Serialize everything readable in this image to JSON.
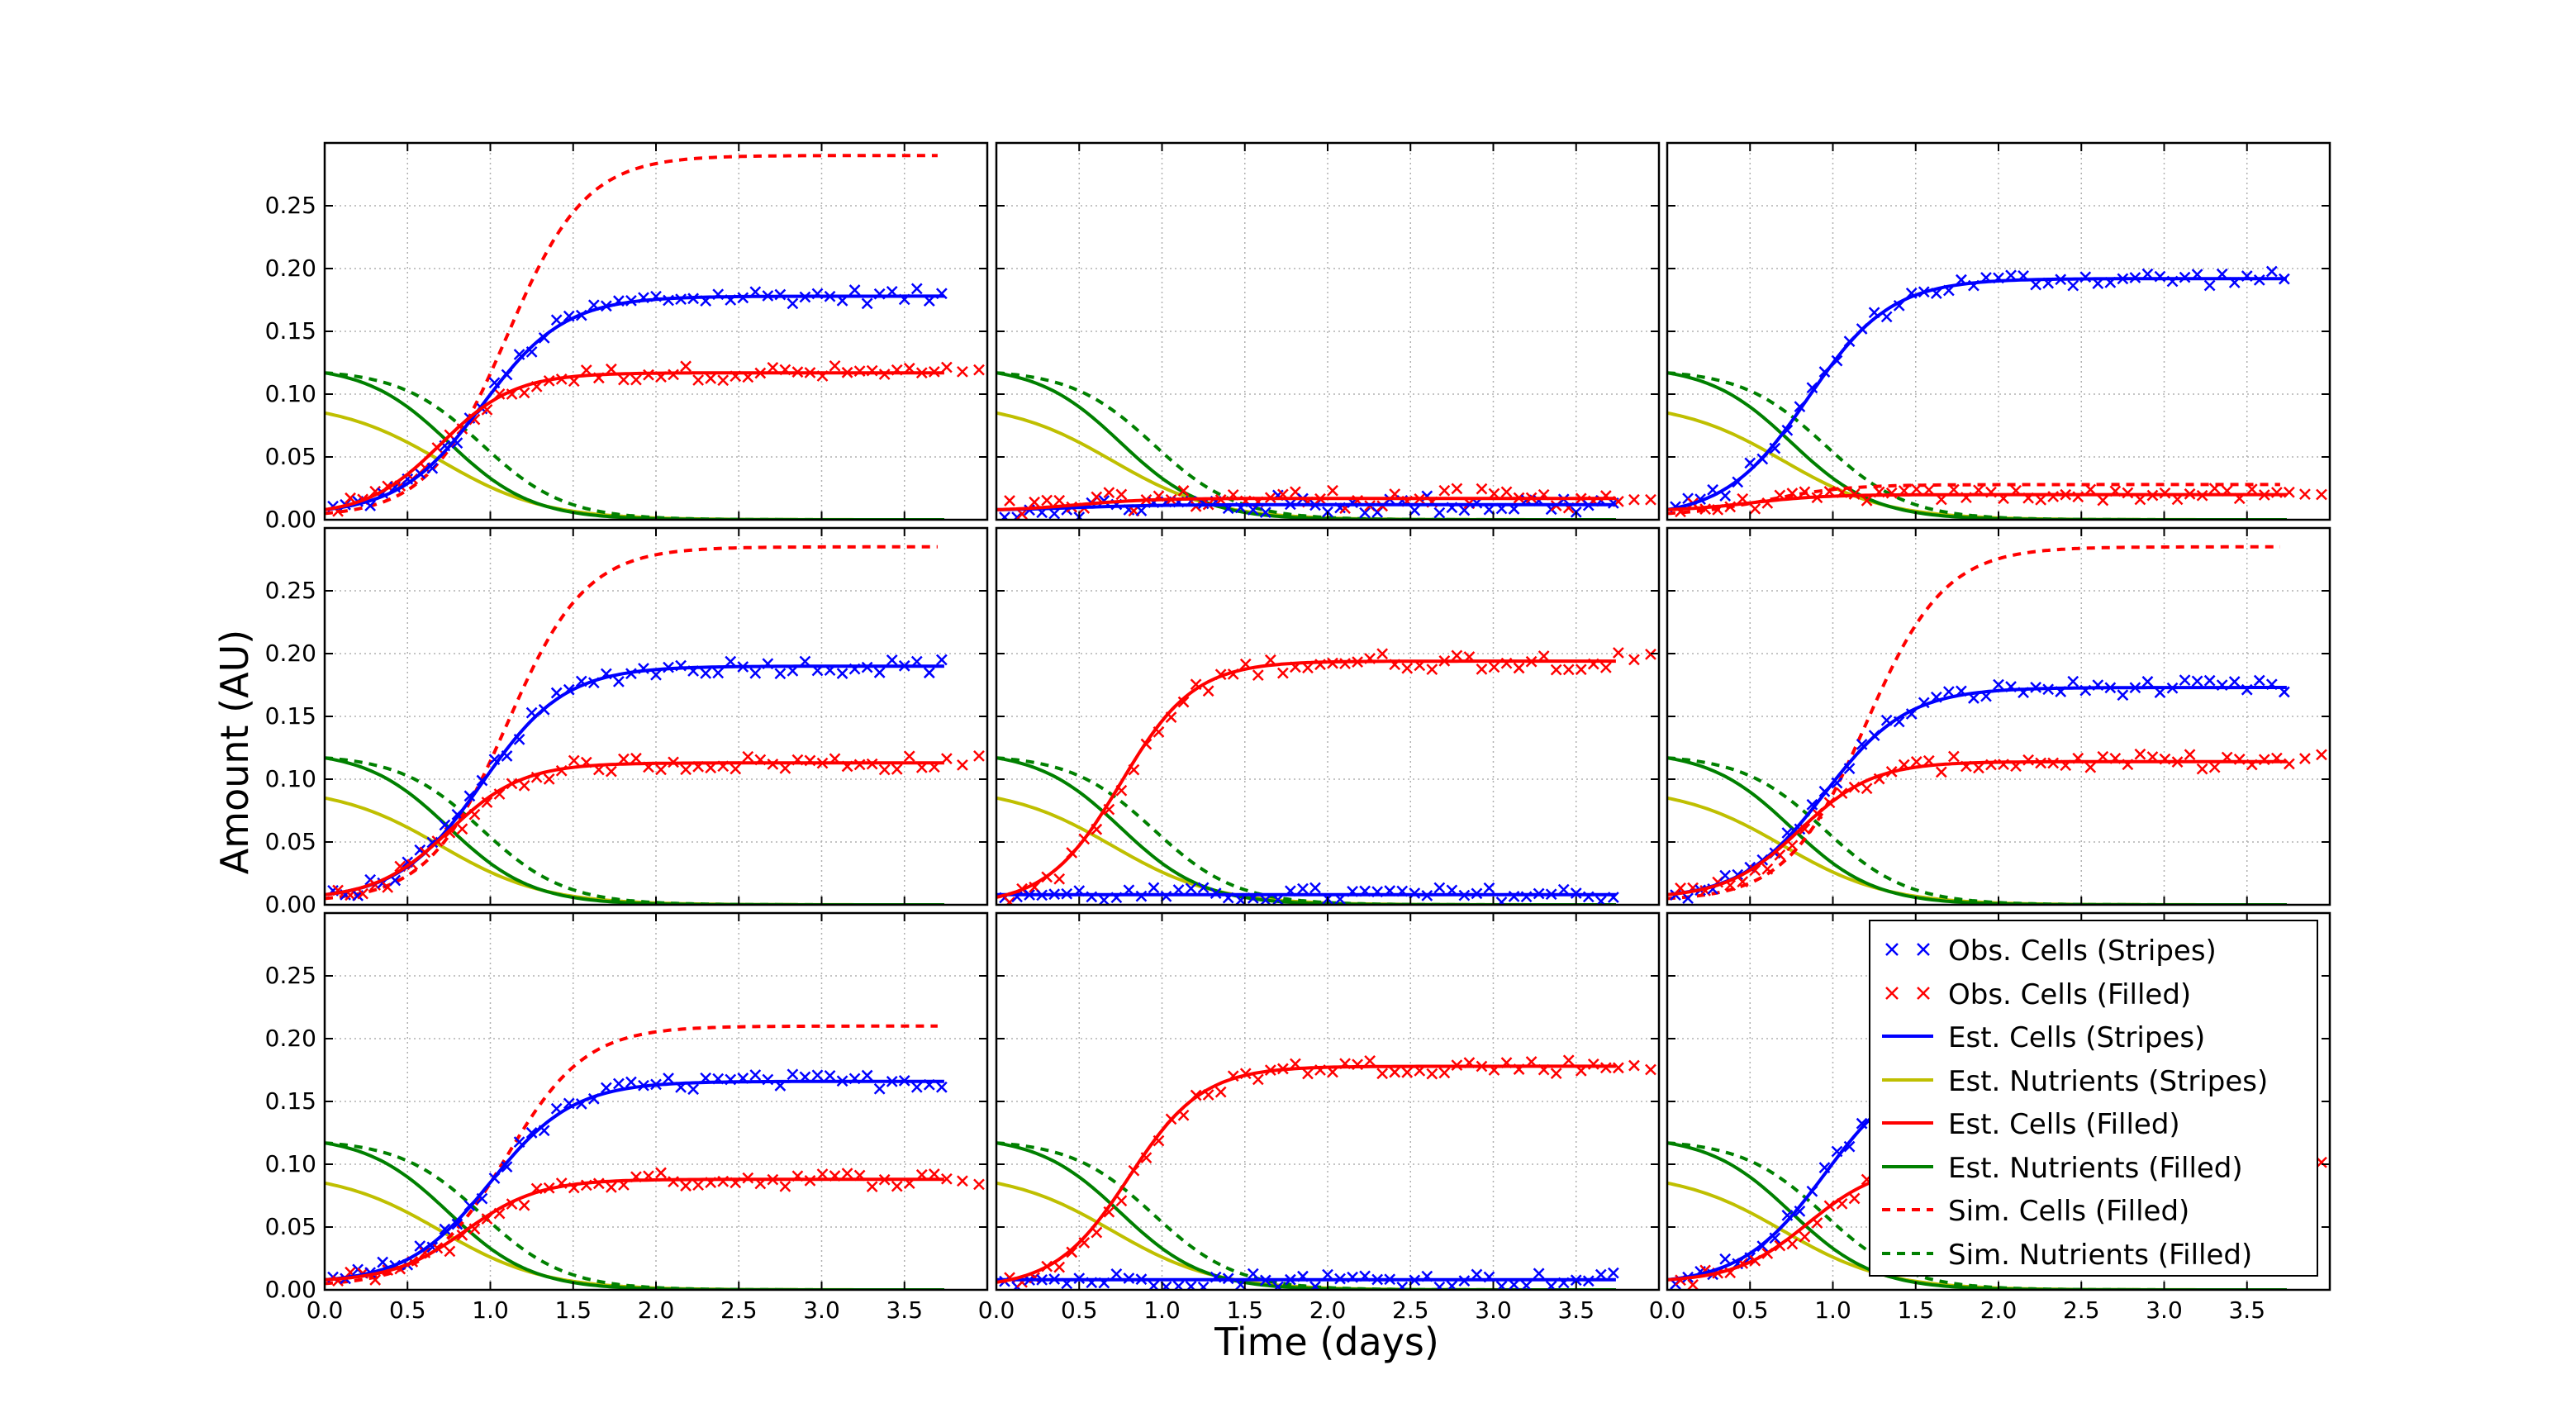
{
  "figure": {
    "ylabel": "Amount (AU)",
    "xlabel": "Time (days)"
  },
  "colors": {
    "stripes_cells": "#0000ff",
    "stripes_nutrients": "#bfbf00",
    "filled_cells": "#ff0000",
    "filled_nutrients": "#008000",
    "grid": "#b0b0b0"
  },
  "legend": {
    "position": "lower-right panel, top-right",
    "items": [
      {
        "label": "Obs. Cells (Stripes)",
        "color": "#0000ff",
        "style": "marker-x"
      },
      {
        "label": "Obs. Cells (Filled)",
        "color": "#ff0000",
        "style": "marker-x"
      },
      {
        "label": "Est. Cells (Stripes)",
        "color": "#0000ff",
        "style": "solid"
      },
      {
        "label": "Est. Nutrients (Stripes)",
        "color": "#bfbf00",
        "style": "solid"
      },
      {
        "label": "Est. Cells (Filled)",
        "color": "#ff0000",
        "style": "solid"
      },
      {
        "label": "Est. Nutrients (Filled)",
        "color": "#008000",
        "style": "solid"
      },
      {
        "label": "Sim. Cells (Filled)",
        "color": "#ff0000",
        "style": "dashed"
      },
      {
        "label": "Sim. Nutrients (Filled)",
        "color": "#008000",
        "style": "dashed"
      }
    ]
  },
  "chart_data": {
    "type": "line",
    "layout": "3x3 grid of panels, shared axes",
    "xlabel": "Time (days)",
    "ylabel": "Amount (AU)",
    "xlim": [
      0,
      4.0
    ],
    "ylim": [
      0,
      0.3
    ],
    "xticks": [
      "0.0",
      "0.5",
      "1.0",
      "1.5",
      "2.0",
      "2.5",
      "3.0",
      "3.5"
    ],
    "yticks": [
      "0.00",
      "0.05",
      "0.10",
      "0.15",
      "0.20",
      "0.25"
    ],
    "grid": true,
    "model_curves": {
      "est_nutrients_stripes": {
        "start": 0.085,
        "midpoint_days": 0.7
      },
      "est_nutrients_filled": {
        "start": 0.117,
        "midpoint_days": 0.75
      },
      "sim_nutrients_filled": {
        "start": 0.117,
        "midpoint_days": 0.95
      }
    },
    "panels": [
      {
        "id": "r1c1",
        "stripes_cells_plateau": 0.178,
        "stripes_cells_mid_days": 0.95,
        "stripes_cells_start": 0.008,
        "filled_cells_plateau": 0.117,
        "filled_cells_mid_days": 0.7,
        "filled_cells_start": 0.008,
        "sim_cells_plateau": 0.29,
        "sim_cells_mid_days": 1.1,
        "sim_cells_start": 0.005,
        "obs_stripes_visible": true,
        "obs_stripes_noise": 0.006,
        "obs_filled_noise": 0.006
      },
      {
        "id": "r1c2",
        "stripes_cells_plateau": 0.012,
        "stripes_cells_mid_days": 0.5,
        "stripes_cells_start": 0.008,
        "filled_cells_plateau": 0.017,
        "filled_cells_mid_days": 0.5,
        "filled_cells_start": 0.008,
        "sim_cells_plateau": null,
        "sim_cells_mid_days": null,
        "sim_cells_start": null,
        "obs_stripes_visible": true,
        "obs_stripes_noise": 0.008,
        "obs_filled_noise": 0.008
      },
      {
        "id": "r1c3",
        "stripes_cells_plateau": 0.192,
        "stripes_cells_mid_days": 0.85,
        "stripes_cells_start": 0.008,
        "filled_cells_plateau": 0.02,
        "filled_cells_mid_days": 0.5,
        "filled_cells_start": 0.008,
        "sim_cells_plateau": 0.028,
        "sim_cells_mid_days": 0.6,
        "sim_cells_start": 0.005,
        "obs_stripes_visible": true,
        "obs_stripes_noise": 0.006,
        "obs_filled_noise": 0.005
      },
      {
        "id": "r2c1",
        "stripes_cells_plateau": 0.19,
        "stripes_cells_mid_days": 0.95,
        "stripes_cells_start": 0.008,
        "filled_cells_plateau": 0.113,
        "filled_cells_mid_days": 0.75,
        "filled_cells_start": 0.008,
        "sim_cells_plateau": 0.285,
        "sim_cells_mid_days": 1.1,
        "sim_cells_start": 0.005,
        "obs_stripes_visible": true,
        "obs_stripes_noise": 0.006,
        "obs_filled_noise": 0.006
      },
      {
        "id": "r2c2",
        "stripes_cells_plateau": 0.008,
        "stripes_cells_mid_days": 0.5,
        "stripes_cells_start": 0.008,
        "filled_cells_plateau": 0.194,
        "filled_cells_mid_days": 0.75,
        "filled_cells_start": 0.006,
        "sim_cells_plateau": null,
        "sim_cells_mid_days": null,
        "sim_cells_start": null,
        "obs_stripes_visible": true,
        "obs_stripes_noise": 0.006,
        "obs_filled_noise": 0.007
      },
      {
        "id": "r2c3",
        "stripes_cells_plateau": 0.173,
        "stripes_cells_mid_days": 0.95,
        "stripes_cells_start": 0.008,
        "filled_cells_plateau": 0.114,
        "filled_cells_mid_days": 0.8,
        "filled_cells_start": 0.008,
        "sim_cells_plateau": 0.285,
        "sim_cells_mid_days": 1.2,
        "sim_cells_start": 0.005,
        "obs_stripes_visible": true,
        "obs_stripes_noise": 0.006,
        "obs_filled_noise": 0.006
      },
      {
        "id": "r3c1",
        "stripes_cells_plateau": 0.166,
        "stripes_cells_mid_days": 1.0,
        "stripes_cells_start": 0.008,
        "filled_cells_plateau": 0.088,
        "filled_cells_mid_days": 0.85,
        "filled_cells_start": 0.008,
        "sim_cells_plateau": 0.21,
        "sim_cells_mid_days": 1.1,
        "sim_cells_start": 0.005,
        "obs_stripes_visible": true,
        "obs_stripes_noise": 0.006,
        "obs_filled_noise": 0.006
      },
      {
        "id": "r3c2",
        "stripes_cells_plateau": 0.008,
        "stripes_cells_mid_days": 0.5,
        "stripes_cells_start": 0.008,
        "filled_cells_plateau": 0.178,
        "filled_cells_mid_days": 0.8,
        "filled_cells_start": 0.006,
        "sim_cells_plateau": null,
        "sim_cells_mid_days": null,
        "sim_cells_start": null,
        "obs_stripes_visible": true,
        "obs_stripes_noise": 0.006,
        "obs_filled_noise": 0.006
      },
      {
        "id": "r3c3",
        "stripes_cells_plateau": 0.18,
        "stripes_cells_mid_days": 0.95,
        "stripes_cells_start": 0.008,
        "filled_cells_plateau": 0.1,
        "filled_cells_mid_days": 0.85,
        "filled_cells_start": 0.008,
        "sim_cells_plateau": null,
        "sim_cells_mid_days": null,
        "sim_cells_start": null,
        "obs_stripes_visible": true,
        "obs_stripes_noise": 0.006,
        "obs_filled_noise": 0.006
      }
    ],
    "observation_days": {
      "start": 0.0,
      "step": 0.0625,
      "end": 3.75
    },
    "obs_filled_tail_days": [
      3.85,
      3.95
    ]
  }
}
